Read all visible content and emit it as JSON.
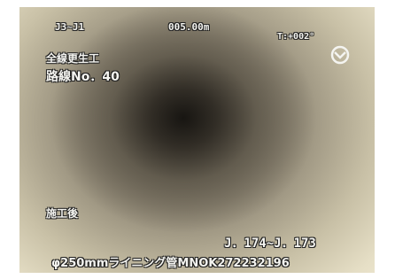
{
  "overlay": {
    "top_left": "J3~J1",
    "distance": "005.00m",
    "tilt": "T:+002°",
    "work_name": "全線更生工",
    "route": "路線No．40",
    "status": "施工後",
    "section": "J．174~J．173",
    "pipe_info": "φ250mmライニング管MNOK272232196"
  }
}
